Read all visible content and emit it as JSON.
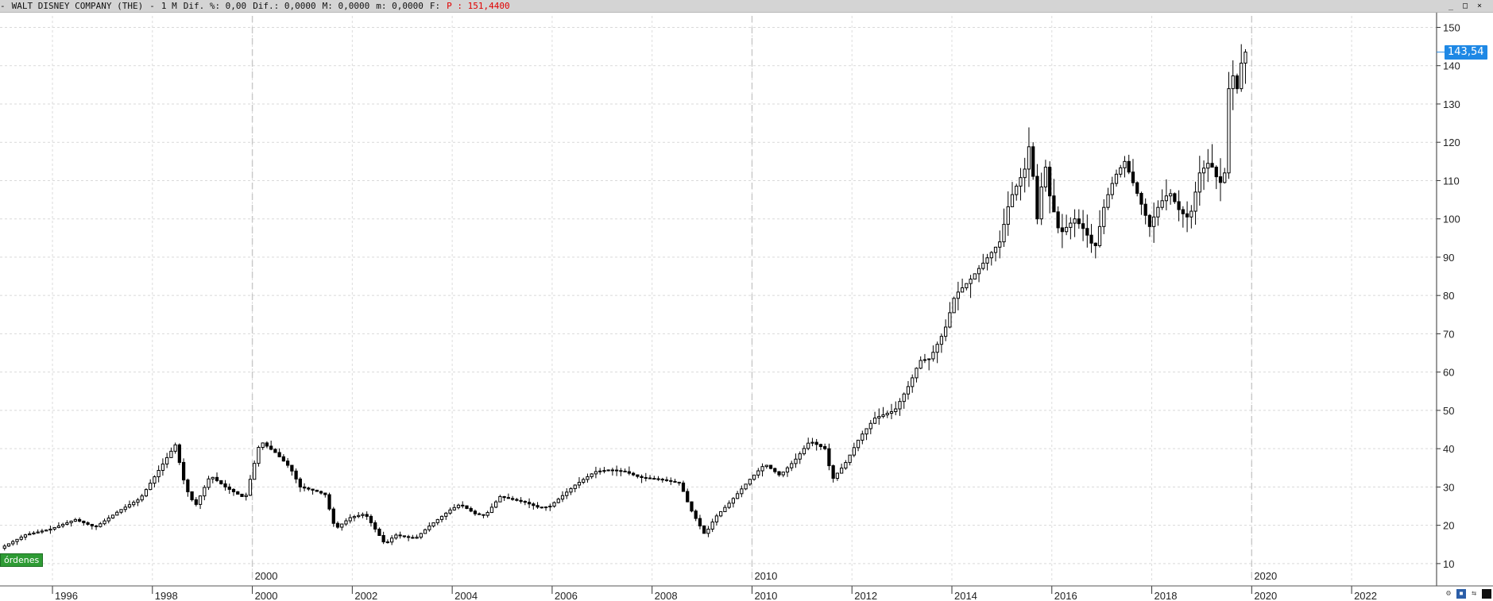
{
  "header": {
    "dash": "-",
    "title": "WALT DISNEY COMPANY (THE)",
    "separator": "-",
    "period": "1 M",
    "diff_pct": "Dif. %: 0,00",
    "diff": "Dif.: 0,0000",
    "max": "M: 0,0000",
    "min": "m: 0,0000",
    "f": "F:",
    "price": "P : 151,4400"
  },
  "window_buttons": {
    "minimize": "_",
    "restore": "□",
    "close": "×"
  },
  "ordenes_button": "órdenes",
  "last_price_label": "143,54",
  "colors": {
    "candle_up": "#ffffff",
    "candle_down": "#000000",
    "last_price_tag": "#1e88e5",
    "orders_button": "#2e9b34",
    "header_price": "#e00000"
  },
  "chart_data": {
    "type": "candlestick",
    "title": "WALT DISNEY COMPANY (THE)",
    "interval": "monthly",
    "yaxis_side": "right",
    "ylim": [
      5,
      153
    ],
    "xlim": [
      1994.95,
      2023.7
    ],
    "y_ticks": [
      10,
      20,
      30,
      40,
      50,
      60,
      70,
      80,
      90,
      100,
      110,
      120,
      130,
      140,
      150
    ],
    "x_ticks": [
      "1996",
      "1998",
      "2000",
      "2002",
      "2004",
      "2006",
      "2008",
      "2010",
      "2012",
      "2014",
      "2016",
      "2018",
      "2020",
      "2022"
    ],
    "decade_labels": [
      "2000",
      "2010",
      "2020"
    ],
    "grid": true,
    "last_price": 143.54,
    "price_path": [
      [
        1995.0,
        14.0
      ],
      [
        1995.5,
        17.5
      ],
      [
        1996.0,
        19.0
      ],
      [
        1996.5,
        21.5
      ],
      [
        1996.9,
        19.5
      ],
      [
        1997.4,
        24.0
      ],
      [
        1997.8,
        27.0
      ],
      [
        1998.3,
        37.0
      ],
      [
        1998.5,
        41.0
      ],
      [
        1998.7,
        30.0
      ],
      [
        1998.9,
        25.0
      ],
      [
        1999.2,
        33.0
      ],
      [
        1999.5,
        30.0
      ],
      [
        1999.9,
        27.0
      ],
      [
        2000.2,
        42.0
      ],
      [
        2000.5,
        39.0
      ],
      [
        2000.8,
        35.0
      ],
      [
        2001.0,
        30.0
      ],
      [
        2001.3,
        29.0
      ],
      [
        2001.5,
        28.0
      ],
      [
        2001.7,
        19.0
      ],
      [
        2002.0,
        22.0
      ],
      [
        2002.3,
        23.0
      ],
      [
        2002.5,
        19.0
      ],
      [
        2002.7,
        15.0
      ],
      [
        2002.9,
        17.5
      ],
      [
        2003.3,
        16.5
      ],
      [
        2003.6,
        20.0
      ],
      [
        2004.0,
        24.0
      ],
      [
        2004.2,
        25.5
      ],
      [
        2004.5,
        23.0
      ],
      [
        2004.7,
        22.5
      ],
      [
        2005.0,
        27.5
      ],
      [
        2005.5,
        26.0
      ],
      [
        2005.8,
        24.5
      ],
      [
        2006.0,
        25.0
      ],
      [
        2006.5,
        30.5
      ],
      [
        2006.9,
        34.0
      ],
      [
        2007.2,
        34.5
      ],
      [
        2007.5,
        34.0
      ],
      [
        2007.8,
        32.5
      ],
      [
        2008.2,
        32.0
      ],
      [
        2008.6,
        31.0
      ],
      [
        2008.8,
        24.5
      ],
      [
        2009.1,
        17.5
      ],
      [
        2009.3,
        22.0
      ],
      [
        2009.6,
        26.0
      ],
      [
        2010.0,
        32.0
      ],
      [
        2010.3,
        36.0
      ],
      [
        2010.6,
        33.0
      ],
      [
        2010.9,
        37.0
      ],
      [
        2011.2,
        42.0
      ],
      [
        2011.5,
        40.0
      ],
      [
        2011.65,
        32.0
      ],
      [
        2011.9,
        36.0
      ],
      [
        2012.2,
        43.0
      ],
      [
        2012.5,
        48.0
      ],
      [
        2012.9,
        50.0
      ],
      [
        2013.2,
        57.0
      ],
      [
        2013.4,
        63.0
      ],
      [
        2013.6,
        63.5
      ],
      [
        2013.9,
        71.0
      ],
      [
        2014.1,
        80.0
      ],
      [
        2014.4,
        84.0
      ],
      [
        2014.7,
        89.0
      ],
      [
        2015.0,
        94.0
      ],
      [
        2015.2,
        105.0
      ],
      [
        2015.5,
        113.0
      ],
      [
        2015.6,
        120.0
      ],
      [
        2015.75,
        100.0
      ],
      [
        2015.9,
        115.0
      ],
      [
        2016.0,
        106.0
      ],
      [
        2016.2,
        96.0
      ],
      [
        2016.5,
        100.0
      ],
      [
        2016.7,
        97.0
      ],
      [
        2016.9,
        92.0
      ],
      [
        2017.1,
        104.0
      ],
      [
        2017.3,
        111.0
      ],
      [
        2017.5,
        115.0
      ],
      [
        2017.8,
        105.0
      ],
      [
        2018.0,
        98.0
      ],
      [
        2018.2,
        104.0
      ],
      [
        2018.4,
        107.0
      ],
      [
        2018.6,
        102.0
      ],
      [
        2018.8,
        100.0
      ],
      [
        2019.0,
        112.0
      ],
      [
        2019.2,
        115.0
      ],
      [
        2019.4,
        109.0
      ],
      [
        2019.5,
        112.0
      ],
      [
        2019.55,
        132.0
      ],
      [
        2019.65,
        138.0
      ],
      [
        2019.75,
        134.0
      ],
      [
        2019.85,
        142.0
      ],
      [
        2019.9,
        143.54
      ]
    ]
  }
}
